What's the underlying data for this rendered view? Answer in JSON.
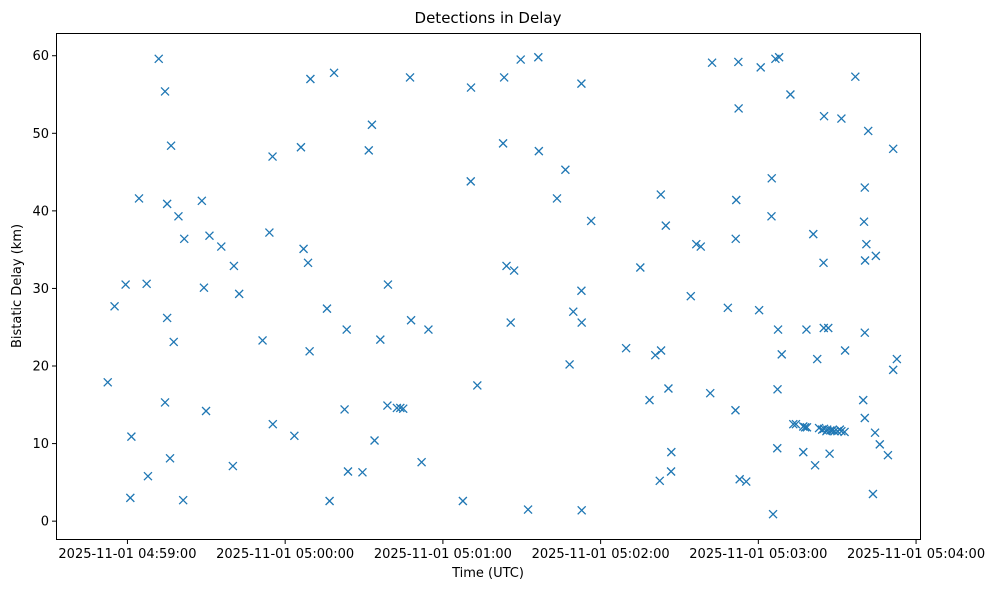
{
  "chart_data": {
    "type": "scatter",
    "title": "Detections in Delay",
    "xlabel": "Time (UTC)",
    "ylabel": "Bistatic Delay (km)",
    "x_unit": "seconds after 2025-11-01 04:59:00 UTC",
    "xlim": [
      -26.8,
      301.5
    ],
    "ylim": [
      -2.3,
      62.8
    ],
    "x_ticks": [
      0,
      60,
      120,
      180,
      240,
      300
    ],
    "x_tick_labels": [
      "2025-11-01 04:59:00",
      "2025-11-01 05:00:00",
      "2025-11-01 05:01:00",
      "2025-11-01 05:02:00",
      "2025-11-01 05:03:00",
      "2025-11-01 05:04:00"
    ],
    "y_ticks": [
      0,
      10,
      20,
      30,
      40,
      50,
      60
    ],
    "y_tick_labels": [
      "0",
      "10",
      "20",
      "30",
      "40",
      "50",
      "60"
    ],
    "marker": "x",
    "color": "#1f77b4",
    "grid": false,
    "points": [
      [
        -7.5,
        17.9
      ],
      [
        -4.9,
        27.7
      ],
      [
        -0.7,
        30.5
      ],
      [
        1.5,
        10.9
      ],
      [
        1.1,
        3.0
      ],
      [
        4.4,
        41.6
      ],
      [
        7.8,
        5.8
      ],
      [
        7.3,
        30.6
      ],
      [
        11.9,
        59.6
      ],
      [
        14.3,
        55.4
      ],
      [
        14.3,
        15.3
      ],
      [
        15.1,
        26.2
      ],
      [
        15.1,
        40.9
      ],
      [
        16.2,
        8.1
      ],
      [
        16.6,
        48.4
      ],
      [
        17.6,
        23.1
      ],
      [
        19.4,
        39.3
      ],
      [
        21.2,
        2.7
      ],
      [
        21.6,
        36.4
      ],
      [
        28.3,
        41.3
      ],
      [
        29.1,
        30.1
      ],
      [
        29.9,
        14.2
      ],
      [
        31.2,
        36.8
      ],
      [
        35.7,
        35.4
      ],
      [
        40.1,
        7.1
      ],
      [
        40.5,
        32.9
      ],
      [
        42.5,
        29.3
      ],
      [
        51.4,
        23.3
      ],
      [
        54.0,
        37.2
      ],
      [
        55.3,
        12.5
      ],
      [
        55.2,
        47.0
      ],
      [
        63.5,
        11.0
      ],
      [
        66.0,
        48.2
      ],
      [
        67.0,
        35.1
      ],
      [
        68.7,
        33.3
      ],
      [
        69.3,
        21.9
      ],
      [
        69.6,
        57.0
      ],
      [
        75.9,
        27.4
      ],
      [
        76.9,
        2.6
      ],
      [
        78.6,
        57.8
      ],
      [
        82.6,
        14.4
      ],
      [
        83.4,
        24.7
      ],
      [
        83.9,
        6.4
      ],
      [
        89.4,
        6.3
      ],
      [
        91.8,
        47.8
      ],
      [
        93.0,
        51.1
      ],
      [
        94.0,
        10.4
      ],
      [
        96.2,
        23.4
      ],
      [
        99.1,
        30.5
      ],
      [
        98.9,
        14.9
      ],
      [
        102.5,
        14.6
      ],
      [
        103.8,
        14.6
      ],
      [
        104.9,
        14.5
      ],
      [
        107.9,
        25.9
      ],
      [
        107.5,
        57.2
      ],
      [
        111.9,
        7.6
      ],
      [
        114.5,
        24.7
      ],
      [
        127.6,
        2.6
      ],
      [
        130.7,
        55.9
      ],
      [
        130.6,
        43.8
      ],
      [
        133.1,
        17.5
      ],
      [
        142.9,
        48.7
      ],
      [
        143.3,
        57.2
      ],
      [
        144.2,
        32.9
      ],
      [
        145.8,
        25.6
      ],
      [
        147.1,
        32.3
      ],
      [
        149.6,
        59.5
      ],
      [
        152.4,
        1.5
      ],
      [
        156.3,
        59.8
      ],
      [
        156.5,
        47.7
      ],
      [
        163.4,
        41.6
      ],
      [
        166.6,
        45.3
      ],
      [
        168.2,
        20.2
      ],
      [
        169.6,
        27.0
      ],
      [
        172.7,
        56.4
      ],
      [
        172.7,
        29.7
      ],
      [
        172.8,
        25.6
      ],
      [
        172.8,
        1.4
      ],
      [
        176.4,
        38.7
      ],
      [
        189.7,
        22.3
      ],
      [
        195.1,
        32.7
      ],
      [
        198.6,
        15.6
      ],
      [
        200.8,
        21.4
      ],
      [
        202.5,
        5.2
      ],
      [
        203.0,
        22.0
      ],
      [
        202.9,
        42.1
      ],
      [
        204.8,
        38.1
      ],
      [
        205.8,
        17.1
      ],
      [
        206.9,
        8.9
      ],
      [
        206.8,
        6.4
      ],
      [
        214.3,
        29.0
      ],
      [
        216.4,
        35.7
      ],
      [
        218.1,
        35.4
      ],
      [
        221.7,
        16.5
      ],
      [
        222.4,
        59.1
      ],
      [
        228.4,
        27.5
      ],
      [
        231.3,
        14.3
      ],
      [
        231.4,
        36.4
      ],
      [
        231.6,
        41.4
      ],
      [
        232.4,
        59.2
      ],
      [
        232.5,
        53.2
      ],
      [
        232.9,
        5.4
      ],
      [
        235.4,
        5.1
      ],
      [
        240.3,
        27.2
      ],
      [
        240.9,
        58.5
      ],
      [
        245.0,
        39.3
      ],
      [
        245.1,
        44.2
      ],
      [
        245.6,
        0.9
      ],
      [
        246.5,
        59.6
      ],
      [
        247.9,
        59.8
      ],
      [
        247.3,
        17.0
      ],
      [
        247.5,
        24.7
      ],
      [
        247.2,
        9.4
      ],
      [
        248.9,
        21.5
      ],
      [
        252.2,
        55.0
      ],
      [
        253.3,
        12.5
      ],
      [
        254.3,
        12.5
      ],
      [
        257.1,
        12.2
      ],
      [
        257.8,
        12.1
      ],
      [
        258.5,
        12.1
      ],
      [
        257.1,
        8.9
      ],
      [
        258.3,
        24.7
      ],
      [
        260.9,
        37.0
      ],
      [
        261.6,
        7.2
      ],
      [
        262.4,
        20.9
      ],
      [
        263.1,
        12.0
      ],
      [
        264.3,
        11.8
      ],
      [
        265.0,
        11.9
      ],
      [
        264.9,
        24.9
      ],
      [
        265.9,
        11.6
      ],
      [
        264.8,
        33.3
      ],
      [
        265.0,
        52.2
      ],
      [
        266.2,
        11.8
      ],
      [
        266.6,
        24.9
      ],
      [
        267.4,
        11.7
      ],
      [
        268.1,
        11.7
      ],
      [
        267.1,
        8.7
      ],
      [
        269.0,
        11.6
      ],
      [
        270.1,
        11.6
      ],
      [
        271.0,
        11.8
      ],
      [
        271.6,
        51.9
      ],
      [
        271.6,
        11.6
      ],
      [
        272.8,
        11.5
      ],
      [
        273.0,
        22.0
      ],
      [
        276.9,
        57.3
      ],
      [
        279.9,
        15.6
      ],
      [
        280.2,
        38.6
      ],
      [
        280.5,
        43.0
      ],
      [
        280.6,
        33.6
      ],
      [
        280.5,
        24.3
      ],
      [
        280.5,
        13.3
      ],
      [
        281.1,
        35.7
      ],
      [
        281.8,
        50.3
      ],
      [
        283.6,
        3.5
      ],
      [
        284.4,
        11.4
      ],
      [
        284.7,
        34.2
      ],
      [
        286.2,
        9.9
      ],
      [
        289.3,
        8.5
      ],
      [
        291.3,
        19.5
      ],
      [
        291.3,
        48.0
      ],
      [
        292.7,
        20.9
      ]
    ]
  }
}
